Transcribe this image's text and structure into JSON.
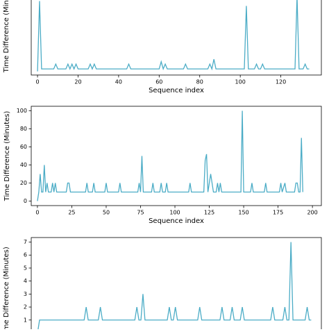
{
  "chart_data": [
    {
      "type": "line",
      "xlabel": "Sequence index",
      "ylabel": "Time Difference (Minutes)",
      "xlim": [
        -3.1,
        140
      ],
      "ylim": [
        -1.5,
        32
      ],
      "xticks": [
        0,
        20,
        40,
        60,
        80,
        100,
        120
      ],
      "yticks": [],
      "x": [
        0,
        1,
        2,
        8,
        9,
        10,
        14,
        15,
        16,
        17,
        18,
        19,
        20,
        25,
        26,
        27,
        28,
        29,
        44,
        45,
        46,
        60,
        61,
        62,
        63,
        64,
        72,
        73,
        74,
        84,
        85,
        86,
        87,
        88,
        102,
        103,
        104,
        107,
        108,
        109,
        110,
        111,
        112,
        127,
        128,
        129,
        131,
        132,
        133,
        134
      ],
      "series": [
        {
          "color": "#4bacc6",
          "values": [
            0,
            29,
            1,
            1,
            3,
            1,
            1,
            3,
            1,
            3,
            1,
            3,
            1,
            1,
            3,
            1,
            3,
            1,
            1,
            3,
            1,
            1,
            4,
            1,
            3,
            1,
            1,
            3,
            1,
            1,
            3,
            1,
            5,
            1,
            1,
            27,
            1,
            1,
            3,
            1,
            1,
            3,
            1,
            1,
            31,
            1,
            1,
            3,
            1,
            1
          ]
        }
      ]
    },
    {
      "type": "line",
      "xlabel": "Sequence index",
      "ylabel": "Time Difference (Minutes)",
      "xlim": [
        -4.5,
        206.5
      ],
      "ylim": [
        -5,
        105
      ],
      "xticks": [
        0,
        25,
        50,
        75,
        100,
        125,
        150,
        175,
        200
      ],
      "yticks": [
        0,
        20,
        40,
        60,
        80,
        100
      ],
      "x": [
        0,
        1,
        2,
        3,
        4,
        5,
        6,
        7,
        8,
        10,
        11,
        12,
        13,
        14,
        21,
        22,
        23,
        24,
        35,
        36,
        37,
        40,
        41,
        42,
        49,
        50,
        51,
        59,
        60,
        61,
        73,
        74,
        75,
        76,
        77,
        83,
        84,
        85,
        89,
        90,
        91,
        93,
        94,
        95,
        110,
        111,
        112,
        121,
        122,
        123,
        124,
        126,
        128,
        130,
        131,
        132,
        133,
        134,
        148,
        149,
        150,
        155,
        156,
        157,
        165,
        166,
        167,
        176,
        177,
        178,
        180,
        181,
        187,
        188,
        189,
        190,
        191,
        192,
        193
      ],
      "series": [
        {
          "color": "#4bacc6",
          "values": [
            0,
            10,
            30,
            10,
            10,
            40,
            10,
            20,
            10,
            10,
            20,
            10,
            20,
            10,
            10,
            20,
            20,
            10,
            10,
            20,
            10,
            10,
            20,
            10,
            10,
            20,
            10,
            10,
            20,
            10,
            10,
            20,
            10,
            50,
            10,
            10,
            20,
            10,
            10,
            20,
            10,
            10,
            20,
            10,
            10,
            20,
            10,
            10,
            45,
            52,
            10,
            30,
            10,
            10,
            20,
            10,
            20,
            10,
            10,
            100,
            10,
            10,
            20,
            10,
            10,
            20,
            10,
            10,
            20,
            10,
            20,
            10,
            10,
            20,
            20,
            10,
            10,
            70,
            10
          ]
        }
      ]
    },
    {
      "type": "line",
      "ylabel": "Time Difference (Minutes)",
      "xlim": [
        -3.1,
        140
      ],
      "ylim": [
        -0.35,
        7.35
      ],
      "xticks": [],
      "yticks": [
        1,
        2,
        3,
        4,
        5,
        6,
        7
      ],
      "x": [
        0,
        1,
        23,
        24,
        25,
        30,
        31,
        32,
        48,
        49,
        50,
        51,
        52,
        53,
        64,
        65,
        66,
        67,
        68,
        69,
        79,
        80,
        81,
        90,
        91,
        92,
        95,
        96,
        97,
        100,
        101,
        102,
        115,
        116,
        117,
        121,
        122,
        123,
        124,
        125,
        126,
        132,
        133,
        134,
        135
      ],
      "series": [
        {
          "color": "#4bacc6",
          "values": [
            0,
            1,
            1,
            2,
            1,
            1,
            2,
            1,
            1,
            2,
            1,
            1,
            3,
            1,
            1,
            2,
            1,
            1,
            2,
            1,
            1,
            2,
            1,
            1,
            2,
            1,
            1,
            2,
            1,
            1,
            2,
            1,
            1,
            2,
            1,
            1,
            2,
            1,
            1,
            7,
            1,
            1,
            2,
            1,
            1
          ]
        }
      ]
    }
  ]
}
